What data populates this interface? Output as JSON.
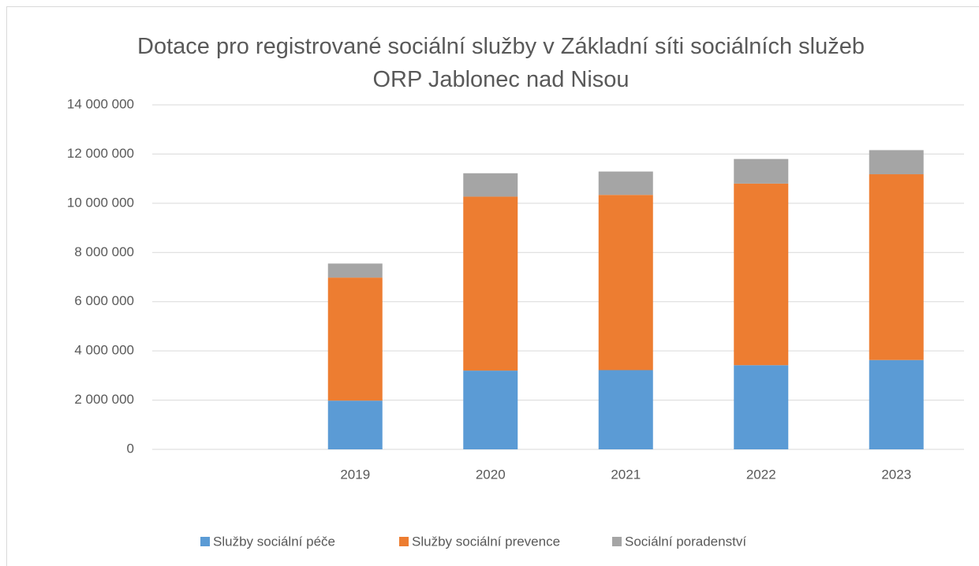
{
  "chart_data": {
    "type": "stacked_bar",
    "title": "Dotace pro registrované sociální služby v Základní síti sociálních služeb ORP Jablonec nad Nisou",
    "categories": [
      null,
      "2019",
      "2020",
      "2021",
      "2022",
      "2023"
    ],
    "series": [
      {
        "name": "Služby sociální péče",
        "color": "#5b9bd5",
        "values": [
          null,
          1980000,
          3200000,
          3220000,
          3420000,
          3630000
        ]
      },
      {
        "name": "Služby sociální prevence",
        "color": "#ed7d31",
        "values": [
          null,
          5000000,
          7070000,
          7120000,
          7380000,
          7550000
        ]
      },
      {
        "name": "Sociální poradenství",
        "color": "#a5a5a5",
        "values": [
          null,
          570000,
          950000,
          950000,
          1000000,
          980000
        ]
      }
    ],
    "ylim": [
      0,
      14000000
    ],
    "yticks": [
      0,
      {
        "value": 2000000,
        "label": "2 000 000"
      },
      {
        "value": 4000000,
        "label": "4 000 000"
      },
      {
        "value": 6000000,
        "label": "6 000 000"
      },
      {
        "value": 8000000,
        "label": "8 000 000"
      },
      {
        "value": 10000000,
        "label": "10 000 000"
      },
      {
        "value": 12000000,
        "label": "12 000 000"
      },
      {
        "value": 14000000,
        "label": "14 000 000"
      }
    ],
    "grid": true,
    "legend": "bottom"
  }
}
